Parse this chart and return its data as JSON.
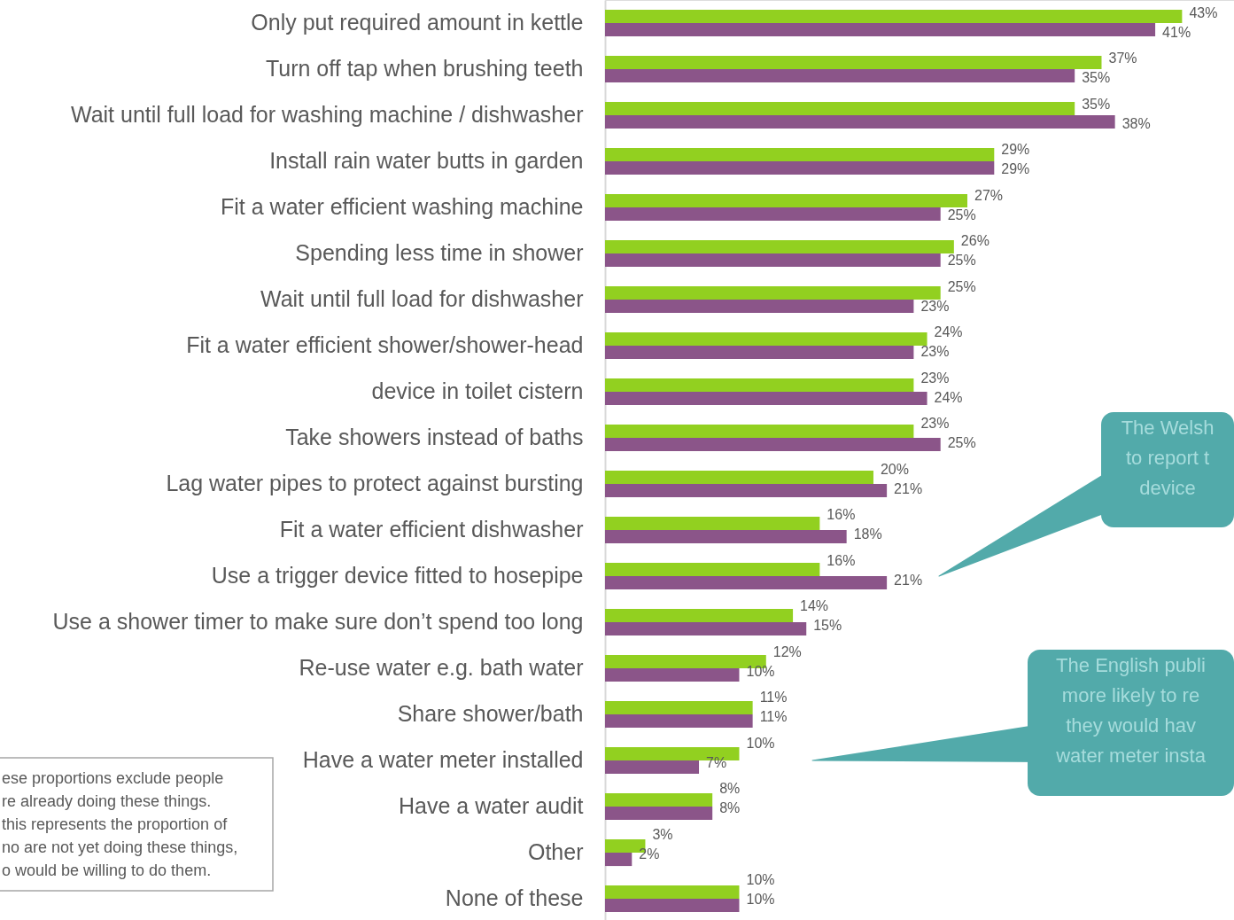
{
  "chart_data": {
    "type": "bar",
    "orientation": "horizontal",
    "tick_labels": "y",
    "categories": [
      "Only put required amount in kettle",
      "Turn off tap when brushing teeth",
      "Wait until full load for washing machine / dishwasher",
      "Install rain water butts in garden",
      "Fit a water efficient washing machine",
      "Spending less time in shower",
      "Wait until full load for dishwasher",
      "Fit a water efficient shower/shower-head",
      "device in toilet cistern",
      "Take showers instead of baths",
      "Lag water pipes to protect against bursting",
      "Fit a water efficient dishwasher",
      "Use a trigger device fitted to hosepipe",
      "Use a shower timer to make sure don’t spend too long",
      "Re-use water e.g. bath water",
      "Share shower/bath",
      "Have a water meter installed",
      "Have a water audit",
      "Other",
      "None of these"
    ],
    "series": [
      {
        "color": "#92d020",
        "values": [
          43,
          37,
          35,
          29,
          27,
          26,
          25,
          24,
          23,
          23,
          20,
          16,
          16,
          14,
          12,
          11,
          10,
          8,
          3,
          10
        ],
        "value_labels": [
          "43%",
          "37%",
          "35%",
          "29%",
          "27%",
          "26%",
          "25%",
          "24%",
          "23%",
          "23%",
          "20%",
          "16%",
          "16%",
          "14%",
          "12%",
          "11%",
          "10%",
          "8%",
          "3%",
          "10%"
        ]
      },
      {
        "color": "#8b5589",
        "values": [
          41,
          35,
          38,
          29,
          25,
          25,
          23,
          23,
          24,
          25,
          21,
          18,
          21,
          15,
          10,
          11,
          7,
          8,
          2,
          10
        ],
        "value_labels": [
          "41%",
          "35%",
          "38%",
          "29%",
          "25%",
          "25%",
          "23%",
          "23%",
          "24%",
          "25%",
          "21%",
          "18%",
          "21%",
          "15%",
          "10%",
          "11%",
          "7%",
          "8%",
          "2%",
          "10%"
        ]
      }
    ],
    "annotations": [
      "The Welsh\nto report t\ndevice",
      "The English publi\nmore likely to re\nthey would hav\nwater meter insta",
      "ese proportions exclude people\nre already doing these things.\nthis represents the proportion of\nno are not yet doing these things,\no would be willing to do them."
    ]
  }
}
